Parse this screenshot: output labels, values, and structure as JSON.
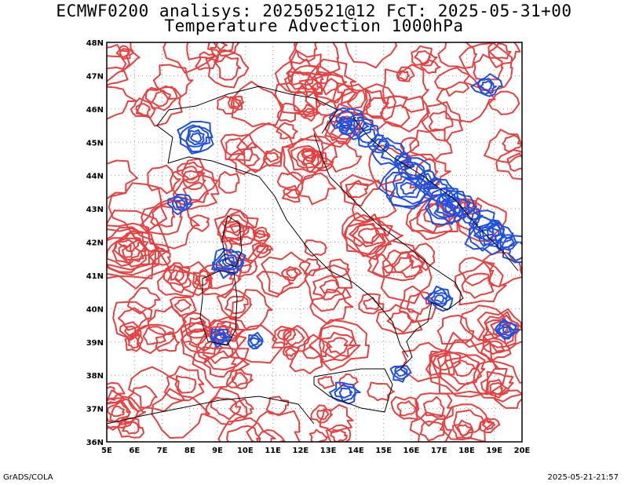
{
  "title_line1": "ECMWF0200 analisys: 20250521@12 FcT: 2025-05-31+00",
  "title_line2": "Temperature Advection 1000hPa",
  "footer_left": "GrADS/COLA",
  "footer_right": "2025-05-21-21:57",
  "map": {
    "lon_range": [
      5,
      20
    ],
    "lat_range": [
      36,
      48
    ],
    "lon_ticks": [
      "5E",
      "6E",
      "7E",
      "8E",
      "9E",
      "10E",
      "11E",
      "12E",
      "13E",
      "14E",
      "15E",
      "16E",
      "17E",
      "18E",
      "19E",
      "20E"
    ],
    "lat_ticks": [
      "36N",
      "37N",
      "38N",
      "39N",
      "40N",
      "41N",
      "42N",
      "43N",
      "44N",
      "45N",
      "46N",
      "47N",
      "48N"
    ],
    "grid": "dotted",
    "positive_contour_color": "#e84040",
    "negative_contour_color": "#2050e0",
    "coastline_color": "#000000"
  }
}
